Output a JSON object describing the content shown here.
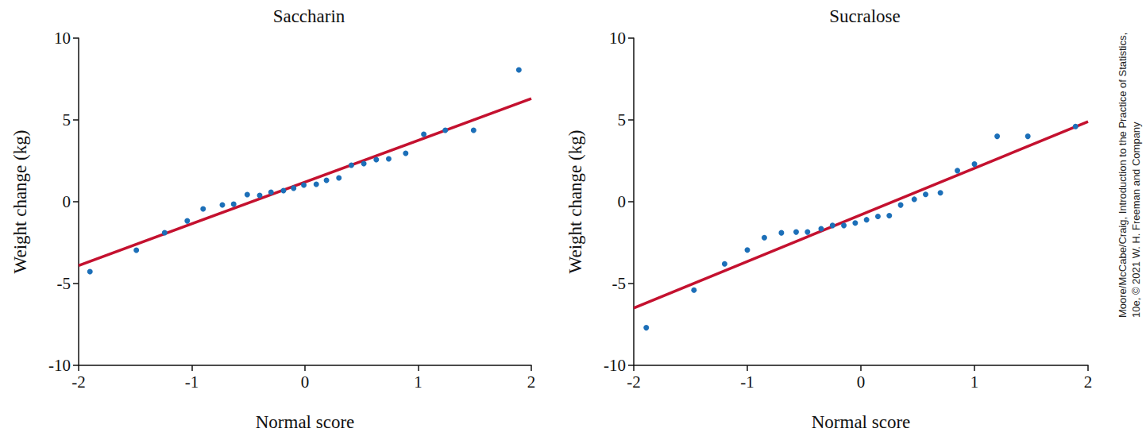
{
  "chart_data": [
    {
      "type": "scatter",
      "title": "Saccharin",
      "x_label": "Normal score",
      "y_label": "Weight change (kg)",
      "xlim": [
        -2,
        2
      ],
      "xticks": [
        -2,
        -1,
        0,
        1,
        2
      ],
      "ylim": [
        -10,
        10
      ],
      "yticks": [
        -10,
        -5,
        0,
        5,
        10
      ],
      "grid": false,
      "series": [
        {
          "type": "scatter",
          "color": "#1c6fb8",
          "marker": "circle",
          "x": [
            -1.9,
            -1.49,
            -1.24,
            -1.04,
            -0.9,
            -0.73,
            -0.63,
            -0.51,
            -0.4,
            -0.3,
            -0.19,
            -0.1,
            -0.01,
            0.1,
            0.19,
            0.3,
            0.41,
            0.52,
            0.63,
            0.74,
            0.89,
            1.05,
            1.24,
            1.49,
            1.89
          ],
          "values": [
            -4.27,
            -2.96,
            -1.89,
            -1.17,
            -0.44,
            -0.19,
            -0.15,
            0.44,
            0.39,
            0.58,
            0.68,
            0.83,
            1.02,
            1.07,
            1.31,
            1.46,
            2.23,
            2.33,
            2.57,
            2.62,
            2.96,
            4.13,
            4.37,
            4.37,
            8.06
          ]
        },
        {
          "type": "line",
          "color": "#c4112f",
          "line_style": "solid",
          "x": [
            -2,
            2
          ],
          "values": [
            -3.9,
            6.3
          ]
        }
      ]
    },
    {
      "type": "scatter",
      "title": "Sucralose",
      "x_label": "Normal score",
      "y_label": "Weight change (kg)",
      "xlim": [
        -2,
        2
      ],
      "xticks": [
        -2,
        -1,
        0,
        1,
        2
      ],
      "ylim": [
        -10,
        10
      ],
      "yticks": [
        -10,
        -5,
        0,
        5,
        10
      ],
      "grid": false,
      "annotations": [
        "Moore/McCabe/Craig, Introduction to the Practice of Statistics,",
        "10e, © 2021 W. H. Freeman and Company"
      ],
      "series": [
        {
          "type": "scatter",
          "color": "#1c6fb8",
          "marker": "circle",
          "x": [
            -1.89,
            -1.47,
            -1.2,
            -1.0,
            -0.85,
            -0.7,
            -0.57,
            -0.47,
            -0.35,
            -0.25,
            -0.15,
            -0.05,
            0.05,
            0.15,
            0.25,
            0.35,
            0.47,
            0.57,
            0.7,
            0.85,
            1.0,
            1.2,
            1.47,
            1.89
          ],
          "values": [
            -7.7,
            -5.4,
            -3.8,
            -2.95,
            -2.2,
            -1.9,
            -1.85,
            -1.85,
            -1.65,
            -1.45,
            -1.45,
            -1.3,
            -1.1,
            -0.9,
            -0.85,
            -0.2,
            0.15,
            0.45,
            0.55,
            1.9,
            2.3,
            4.0,
            4.0,
            4.6
          ]
        },
        {
          "type": "line",
          "color": "#c4112f",
          "line_style": "solid",
          "x": [
            -2,
            2
          ],
          "values": [
            -6.5,
            4.9
          ]
        }
      ]
    }
  ]
}
